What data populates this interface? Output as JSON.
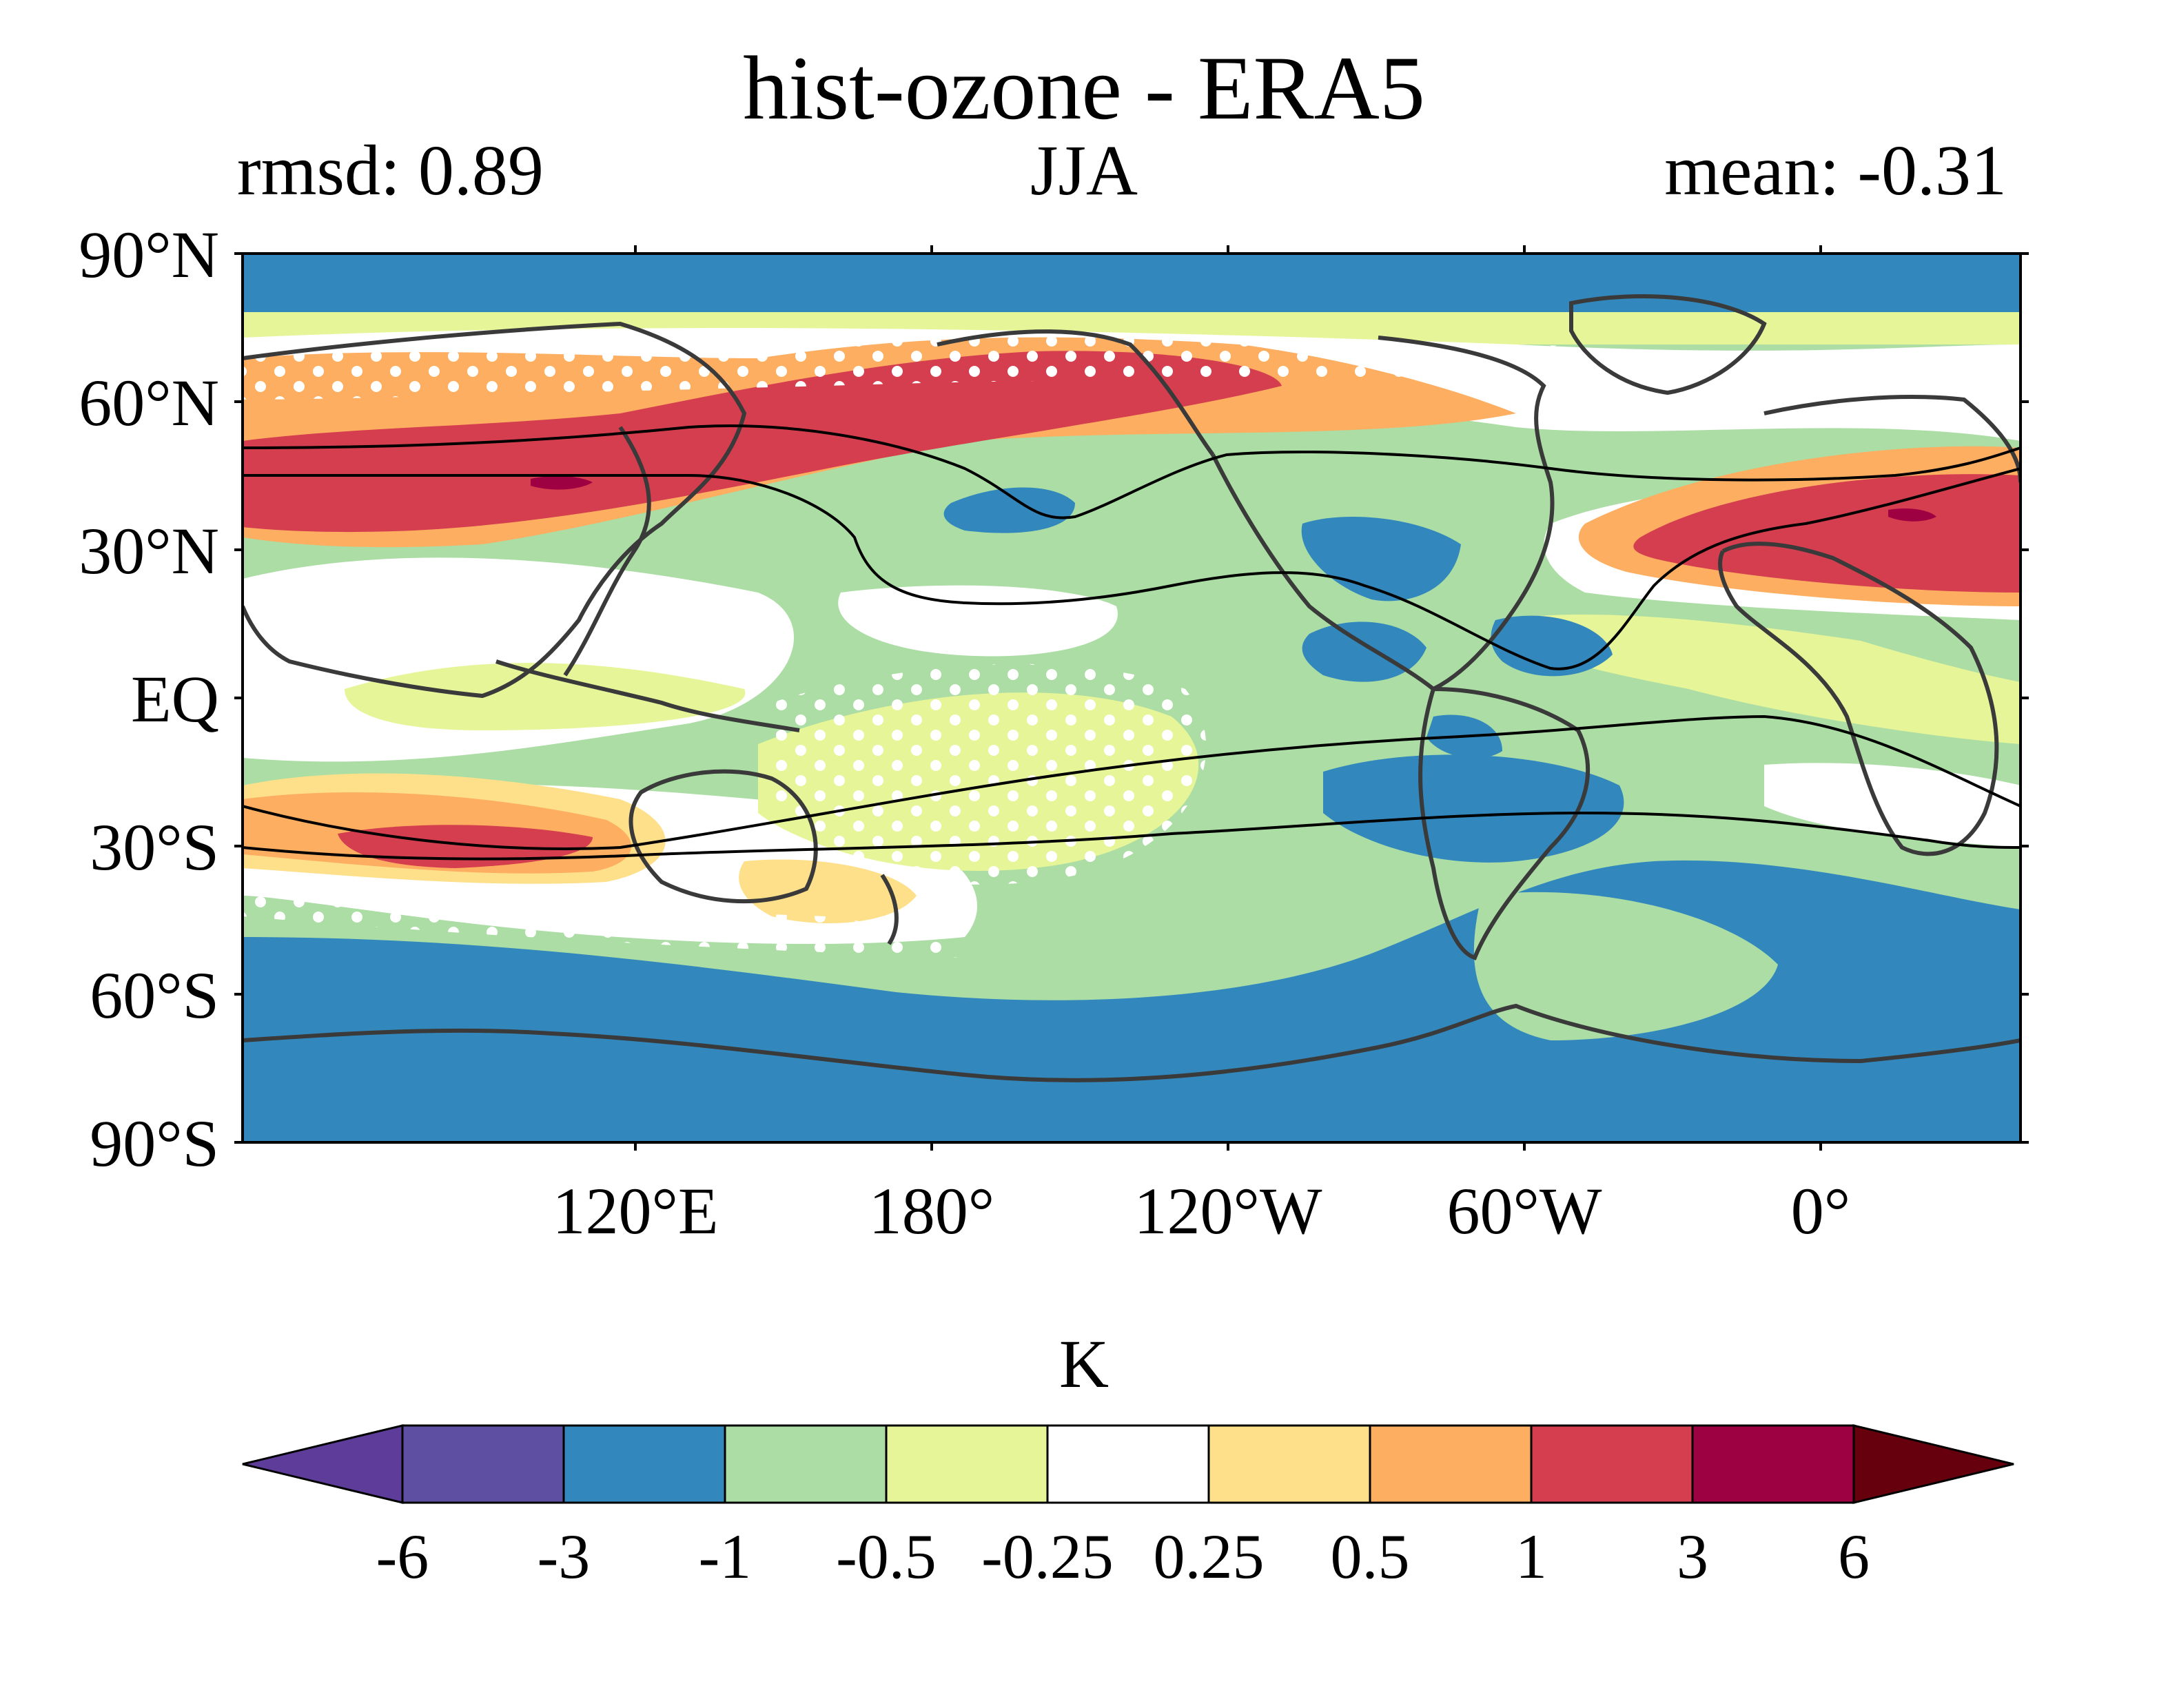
{
  "figure": {
    "title": "hist-ozone - ERA5",
    "subtitle_left": "rmsd: 0.89",
    "subtitle_center": "JJA",
    "subtitle_right": "mean: -0.31"
  },
  "map": {
    "lat_ticks": [
      "90°N",
      "60°N",
      "30°N",
      "EQ",
      "30°S",
      "60°S",
      "90°S"
    ],
    "lon_ticks": [
      "120°E",
      "180°",
      "120°W",
      "60°W",
      "0°"
    ],
    "lon_range": [
      40,
      400
    ],
    "lat_range": [
      -90,
      90
    ]
  },
  "colorbar": {
    "unit": "K",
    "labels": [
      "-6",
      "-3",
      "-1",
      "-0.5",
      "-0.25",
      "0.25",
      "0.5",
      "1",
      "3",
      "6"
    ],
    "colors": [
      "#5e3c99",
      "#5e4fa2",
      "#3288bd",
      "#abdda4",
      "#e6f598",
      "#ffffff",
      "#fee08b",
      "#fdae61",
      "#d53e4f",
      "#9e0142",
      "#67000d"
    ]
  },
  "palette": {
    "strong_neg": "#3288bd",
    "neg": "#abdda4",
    "weak_neg": "#e6f598",
    "neutral": "#ffffff",
    "weak_pos": "#fee08b",
    "pos": "#fdae61",
    "strong_pos": "#d53e4f",
    "extreme_pos": "#9e0142",
    "coast": "#3a3a3a",
    "jet": "#000000"
  }
}
